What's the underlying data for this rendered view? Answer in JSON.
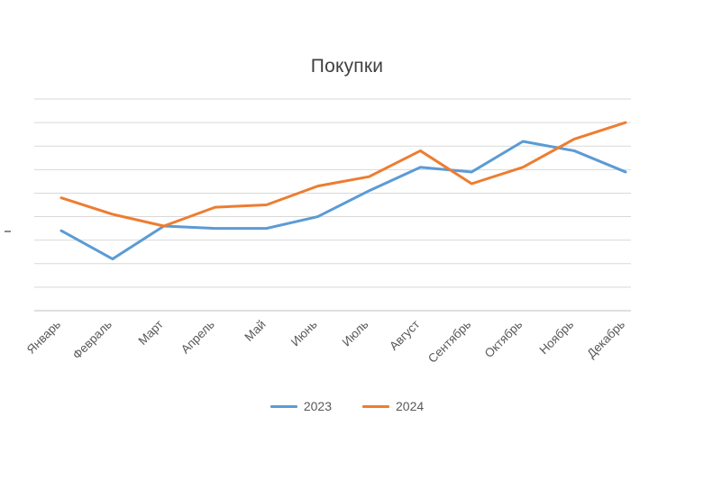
{
  "chart_data": {
    "type": "line",
    "title": "Покупки",
    "categories": [
      "Январь",
      "Февраль",
      "Март",
      "Апрель",
      "Май",
      "Июнь",
      "Июль",
      "Август",
      "Сентябрь",
      "Октябрь",
      "Ноябрь",
      "Декабрь"
    ],
    "series": [
      {
        "name": "2023",
        "color": "#5B9BD5",
        "values": [
          34,
          22,
          36,
          35,
          35,
          40,
          51,
          61,
          59,
          72,
          68,
          59
        ]
      },
      {
        "name": "2024",
        "color": "#ED7D31",
        "values": [
          48,
          41,
          36,
          44,
          45,
          53,
          57,
          68,
          54,
          61,
          73,
          80
        ]
      }
    ],
    "ylim": [
      0,
      90
    ],
    "grid_step": 10,
    "grid_on": true,
    "grid_color": "#D9D9D9",
    "axis_color": "#BFBFBF",
    "label_color": "#595959",
    "legend_position": "bottom",
    "y_axis_labels_visible": false
  },
  "legend": {
    "items": [
      {
        "label": "2023"
      },
      {
        "label": "2024"
      }
    ]
  }
}
